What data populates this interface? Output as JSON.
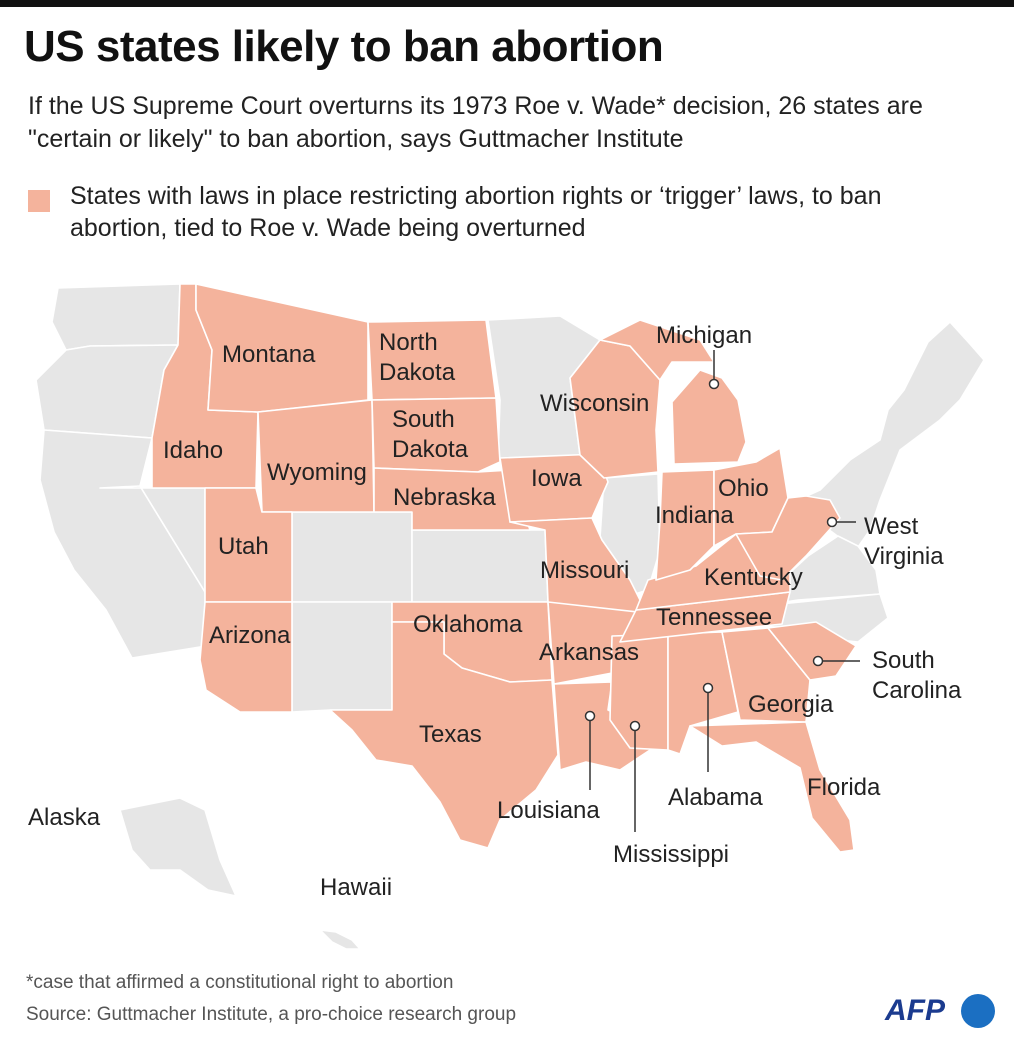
{
  "header": {
    "title": "US states likely to ban abortion",
    "subtitle": "If the US Supreme Court overturns its 1973 Roe v. Wade* decision, 26 states are \"certain or likely\" to ban abortion, says Guttmacher Institute"
  },
  "legend": {
    "text": "States with laws in place restricting abortion rights or ‘trigger’ laws, to ban abortion, tied to Roe v. Wade being overturned",
    "color": "#f4b39c"
  },
  "colors": {
    "highlight": "#f4b39c",
    "other": "#e6e6e6",
    "border": "#ffffff"
  },
  "states": {
    "montana": "Montana",
    "north_dakota_1": "North",
    "north_dakota_2": "Dakota",
    "south_dakota_1": "South",
    "south_dakota_2": "Dakota",
    "idaho": "Idaho",
    "wyoming": "Wyoming",
    "nebraska": "Nebraska",
    "utah": "Utah",
    "arizona": "Arizona",
    "oklahoma": "Oklahoma",
    "texas": "Texas",
    "wisconsin": "Wisconsin",
    "michigan": "Michigan",
    "iowa": "Iowa",
    "missouri": "Missouri",
    "arkansas": "Arkansas",
    "louisiana": "Louisiana",
    "mississippi": "Mississippi",
    "alabama": "Alabama",
    "georgia": "Georgia",
    "florida": "Florida",
    "tennessee": "Tennessee",
    "kentucky": "Kentucky",
    "indiana": "Indiana",
    "ohio": "Ohio",
    "west_virginia_1": "West",
    "west_virginia_2": "Virginia",
    "south_carolina_1": "South",
    "south_carolina_2": "Carolina",
    "alaska": "Alaska",
    "hawaii": "Hawaii"
  },
  "footer": {
    "footnote": "*case that affirmed a constitutional right to abortion",
    "source": "Source: Guttmacher Institute, a pro-choice research group",
    "logo": "AFP"
  }
}
